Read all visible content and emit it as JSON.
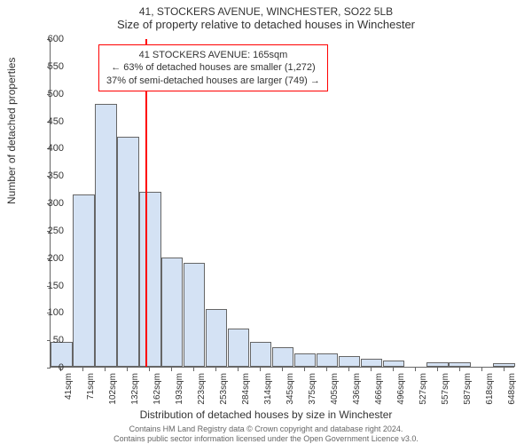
{
  "title_line1": "41, STOCKERS AVENUE, WINCHESTER, SO22 5LB",
  "title_line2": "Size of property relative to detached houses in Winchester",
  "y_axis_label": "Number of detached properties",
  "x_axis_label": "Distribution of detached houses by size in Winchester",
  "footer_line1": "Contains HM Land Registry data © Crown copyright and database right 2024.",
  "footer_line2": "Contains public sector information licensed under the Open Government Licence v3.0.",
  "callout": {
    "line1": "41 STOCKERS AVENUE: 165sqm",
    "line2": "← 63% of detached houses are smaller (1,272)",
    "line3": "37% of semi-detached houses are larger (749) →"
  },
  "chart": {
    "type": "histogram",
    "ylim": [
      0,
      600
    ],
    "ytick_step": 50,
    "bar_fill": "#d4e2f4",
    "bar_border": "#666666",
    "ref_line_color": "#ff0000",
    "ref_value_x": 165,
    "background_color": "#ffffff",
    "x_labels": [
      "41sqm",
      "71sqm",
      "102sqm",
      "132sqm",
      "162sqm",
      "193sqm",
      "223sqm",
      "253sqm",
      "284sqm",
      "314sqm",
      "345sqm",
      "375sqm",
      "405sqm",
      "436sqm",
      "466sqm",
      "496sqm",
      "527sqm",
      "557sqm",
      "587sqm",
      "618sqm",
      "648sqm"
    ],
    "bars": [
      45,
      315,
      480,
      420,
      320,
      200,
      190,
      105,
      70,
      45,
      35,
      25,
      25,
      20,
      15,
      12,
      0,
      8,
      8,
      0,
      7
    ]
  }
}
